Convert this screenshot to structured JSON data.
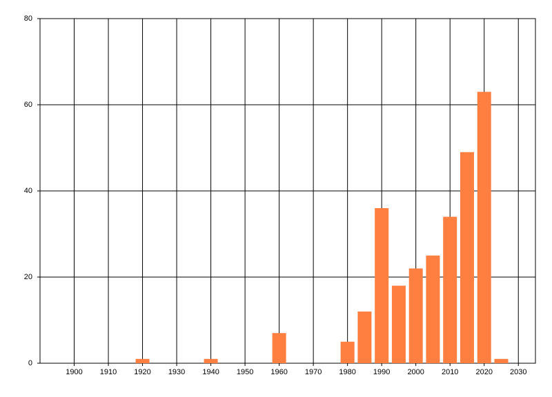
{
  "chart_data": {
    "type": "bar",
    "x": [
      1920,
      1940,
      1960,
      1980,
      1985,
      1990,
      1995,
      2000,
      2005,
      2010,
      2015,
      2020,
      2025
    ],
    "values": [
      1,
      1,
      7,
      5,
      12,
      36,
      18,
      22,
      25,
      34,
      49,
      63,
      1
    ],
    "color": "#ff7f41",
    "xlim": [
      1890,
      2035
    ],
    "xticks": [
      1900,
      1910,
      1920,
      1930,
      1940,
      1950,
      1960,
      1970,
      1980,
      1990,
      2000,
      2010,
      2020,
      2030
    ],
    "ylim": [
      0,
      80
    ],
    "yticks": [
      0,
      20,
      40,
      60,
      80
    ],
    "grid": true
  }
}
